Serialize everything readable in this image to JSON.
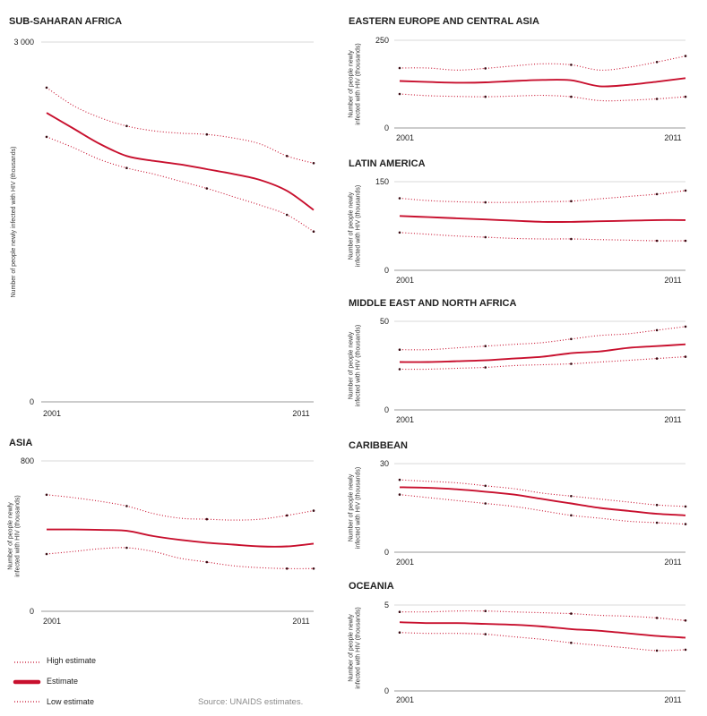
{
  "colors": {
    "series": "#c8102e",
    "axis": "#999999",
    "grid": "#cccccc",
    "text": "#222222"
  },
  "legend": {
    "high": "High estimate",
    "estimate": "Estimate",
    "low": "Low estimate"
  },
  "source": "Source:  UNAIDS estimates.",
  "chart_data": [
    {
      "type": "line",
      "title": "SUB-SAHARAN AFRICA",
      "ylabel": "Number of people newly infected with HIV (thousands)",
      "ytick_labels": [
        "3 000",
        "0"
      ],
      "xtick_labels": [
        "2001",
        "2011"
      ],
      "ylim": [
        0,
        3000
      ],
      "x": [
        2001,
        2002,
        2003,
        2004,
        2005,
        2006,
        2007,
        2008,
        2009,
        2010,
        2011
      ],
      "series": [
        {
          "role": "high",
          "values": [
            2620,
            2470,
            2370,
            2300,
            2260,
            2240,
            2230,
            2200,
            2150,
            2050,
            1990
          ]
        },
        {
          "role": "estimate",
          "values": [
            2410,
            2280,
            2150,
            2050,
            2010,
            1980,
            1940,
            1900,
            1850,
            1760,
            1600
          ]
        },
        {
          "role": "low",
          "values": [
            2210,
            2120,
            2020,
            1950,
            1900,
            1840,
            1780,
            1710,
            1640,
            1560,
            1420
          ]
        }
      ]
    },
    {
      "type": "line",
      "title": "EASTERN EUROPE AND CENTRAL ASIA",
      "ylabel": "Number of people newly infected with HIV (thousands)",
      "ytick_labels": [
        "250",
        "0"
      ],
      "xtick_labels": [
        "2001",
        "2011"
      ],
      "ylim": [
        0,
        250
      ],
      "x": [
        2001,
        2002,
        2003,
        2004,
        2005,
        2006,
        2007,
        2008,
        2009,
        2010,
        2011
      ],
      "series": [
        {
          "role": "high",
          "values": [
            171,
            171,
            165,
            170,
            177,
            183,
            180,
            165,
            173,
            188,
            205
          ]
        },
        {
          "role": "estimate",
          "values": [
            134,
            131,
            129,
            130,
            134,
            137,
            136,
            119,
            123,
            132,
            142
          ]
        },
        {
          "role": "low",
          "values": [
            97,
            92,
            90,
            89,
            91,
            93,
            89,
            78,
            79,
            83,
            89
          ]
        }
      ]
    },
    {
      "type": "line",
      "title": "LATIN AMERICA",
      "ylabel": "Number of people newly infected with HIV (thousands)",
      "ytick_labels": [
        "150",
        "0"
      ],
      "xtick_labels": [
        "2001",
        "2011"
      ],
      "ylim": [
        0,
        150
      ],
      "x": [
        2001,
        2002,
        2003,
        2004,
        2005,
        2006,
        2007,
        2008,
        2009,
        2010,
        2011
      ],
      "series": [
        {
          "role": "high",
          "values": [
            122,
            118,
            116,
            115,
            115,
            116,
            117,
            121,
            125,
            129,
            135
          ]
        },
        {
          "role": "estimate",
          "values": [
            92,
            90,
            88,
            86,
            84,
            82,
            82,
            83,
            84,
            85,
            85
          ]
        },
        {
          "role": "low",
          "values": [
            64,
            61,
            58,
            56,
            54,
            53,
            53,
            52,
            51,
            50,
            50
          ]
        }
      ]
    },
    {
      "type": "line",
      "title": "MIDDLE EAST AND NORTH AFRICA",
      "ylabel": "Number of people newly infected with HIV (thousands)",
      "ytick_labels": [
        "50",
        "0"
      ],
      "xtick_labels": [
        "2001",
        "2011"
      ],
      "ylim": [
        0,
        50
      ],
      "x": [
        2001,
        2002,
        2003,
        2004,
        2005,
        2006,
        2007,
        2008,
        2009,
        2010,
        2011
      ],
      "series": [
        {
          "role": "high",
          "values": [
            34,
            34,
            35,
            36,
            37,
            38,
            40,
            42,
            43,
            45,
            47
          ]
        },
        {
          "role": "estimate",
          "values": [
            27,
            27,
            27.5,
            28,
            29,
            30,
            32,
            33,
            35,
            36,
            37
          ]
        },
        {
          "role": "low",
          "values": [
            23,
            23,
            23.5,
            24,
            25,
            25.5,
            26,
            27,
            28,
            29,
            30
          ]
        }
      ]
    },
    {
      "type": "line",
      "title": "ASIA",
      "ylabel": "Number of people newly infected with HIV (thousands)",
      "ytick_labels": [
        "800",
        "0"
      ],
      "xtick_labels": [
        "2001",
        "2011"
      ],
      "ylim": [
        0,
        800
      ],
      "x": [
        2001,
        2002,
        2003,
        2004,
        2005,
        2006,
        2007,
        2008,
        2009,
        2010,
        2011
      ],
      "series": [
        {
          "role": "high",
          "values": [
            620,
            605,
            585,
            560,
            520,
            495,
            490,
            485,
            490,
            510,
            535
          ]
        },
        {
          "role": "estimate",
          "values": [
            435,
            435,
            433,
            428,
            400,
            380,
            365,
            355,
            345,
            345,
            360
          ]
        },
        {
          "role": "low",
          "values": [
            305,
            318,
            333,
            338,
            318,
            282,
            262,
            242,
            232,
            227,
            227
          ]
        }
      ]
    },
    {
      "type": "line",
      "title": "CARIBBEAN",
      "ylabel": "Number of people newly infected with HIV (thousands)",
      "ytick_labels": [
        "30",
        "0"
      ],
      "xtick_labels": [
        "2001",
        "2011"
      ],
      "ylim": [
        0,
        30
      ],
      "x": [
        2001,
        2002,
        2003,
        2004,
        2005,
        2006,
        2007,
        2008,
        2009,
        2010,
        2011
      ],
      "series": [
        {
          "role": "high",
          "values": [
            24.5,
            24,
            23.5,
            22.5,
            21.5,
            20,
            19,
            18,
            17,
            16,
            15.5
          ]
        },
        {
          "role": "estimate",
          "values": [
            22,
            21.8,
            21.3,
            20.5,
            19.5,
            18,
            16.5,
            15,
            14,
            13,
            12.5
          ]
        },
        {
          "role": "low",
          "values": [
            19.5,
            18.5,
            17.5,
            16.5,
            15.5,
            14,
            12.5,
            11.5,
            10.5,
            10,
            9.5
          ]
        }
      ]
    },
    {
      "type": "line",
      "title": "OCEANIA",
      "ylabel": "Number of people newly infected with HIV (thousands)",
      "ytick_labels": [
        "5",
        "0"
      ],
      "xtick_labels": [
        "2001",
        "2011"
      ],
      "ylim": [
        0,
        5
      ],
      "x": [
        2001,
        2002,
        2003,
        2004,
        2005,
        2006,
        2007,
        2008,
        2009,
        2010,
        2011
      ],
      "series": [
        {
          "role": "high",
          "values": [
            4.6,
            4.6,
            4.65,
            4.65,
            4.6,
            4.55,
            4.5,
            4.4,
            4.35,
            4.25,
            4.1
          ]
        },
        {
          "role": "estimate",
          "values": [
            4,
            3.95,
            3.95,
            3.9,
            3.85,
            3.75,
            3.6,
            3.5,
            3.35,
            3.2,
            3.1
          ]
        },
        {
          "role": "low",
          "values": [
            3.4,
            3.35,
            3.35,
            3.3,
            3.15,
            3.0,
            2.8,
            2.65,
            2.5,
            2.35,
            2.4
          ]
        }
      ]
    }
  ]
}
